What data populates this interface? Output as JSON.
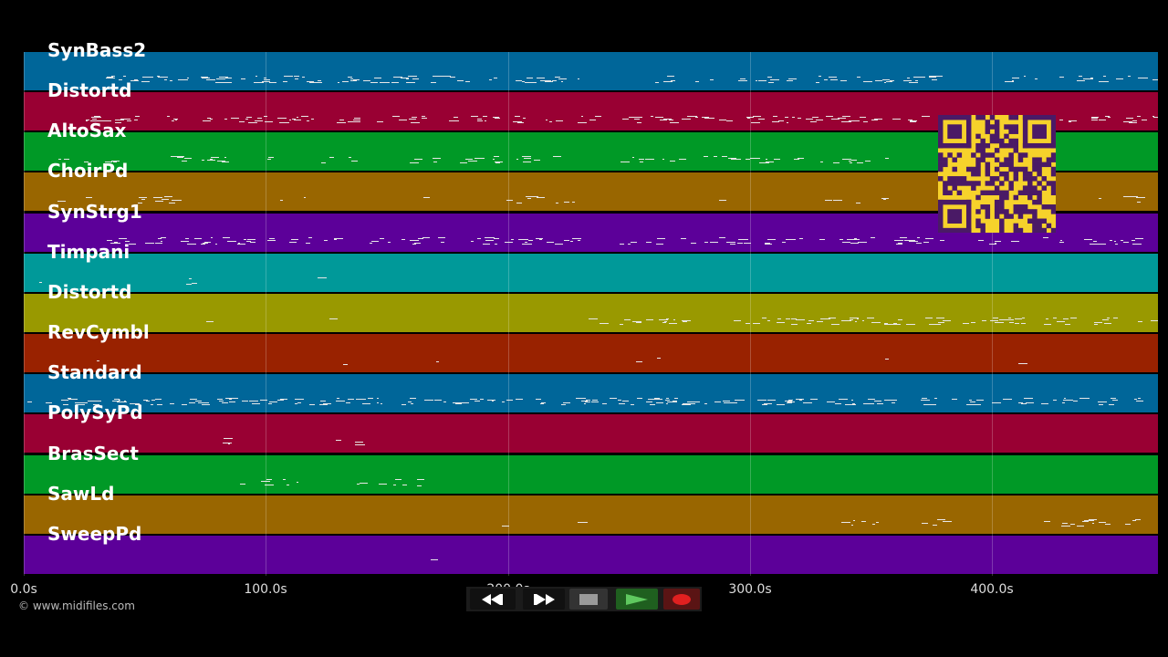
{
  "app": {
    "copyright": "© www.midifiles.com"
  },
  "timeline": {
    "tick_labels": [
      "0.0s",
      "100.0s",
      "200.0s",
      "300.0s",
      "400.0s"
    ]
  },
  "tracks": [
    {
      "name": "SynBass2",
      "color": "#006699"
    },
    {
      "name": "Distortd",
      "color": "#990033"
    },
    {
      "name": "AltoSax",
      "color": "#009926"
    },
    {
      "name": "ChoirPd",
      "color": "#996600"
    },
    {
      "name": "SynStrg1",
      "color": "#5c0099"
    },
    {
      "name": "Timpani",
      "color": "#009999"
    },
    {
      "name": "Distortd",
      "color": "#999900"
    },
    {
      "name": "RevCymbl",
      "color": "#992200"
    },
    {
      "name": "Standard",
      "color": "#006699"
    },
    {
      "name": "PolySyPd",
      "color": "#990033"
    },
    {
      "name": "BrasSect",
      "color": "#009926"
    },
    {
      "name": "SawLd",
      "color": "#996600"
    },
    {
      "name": "SweepPd",
      "color": "#5c0099"
    }
  ],
  "transport": {
    "rewind_icon": "rewind-icon",
    "fast_forward_icon": "fast-forward-icon",
    "stop_icon": "stop-icon",
    "play_icon": "play-icon",
    "record_icon": "record-icon"
  },
  "overlay": {
    "qr_icon": "qr-code-icon",
    "colors": {
      "qr_bg": "#f6d22b",
      "qr_fg": "#4a1a66"
    }
  }
}
